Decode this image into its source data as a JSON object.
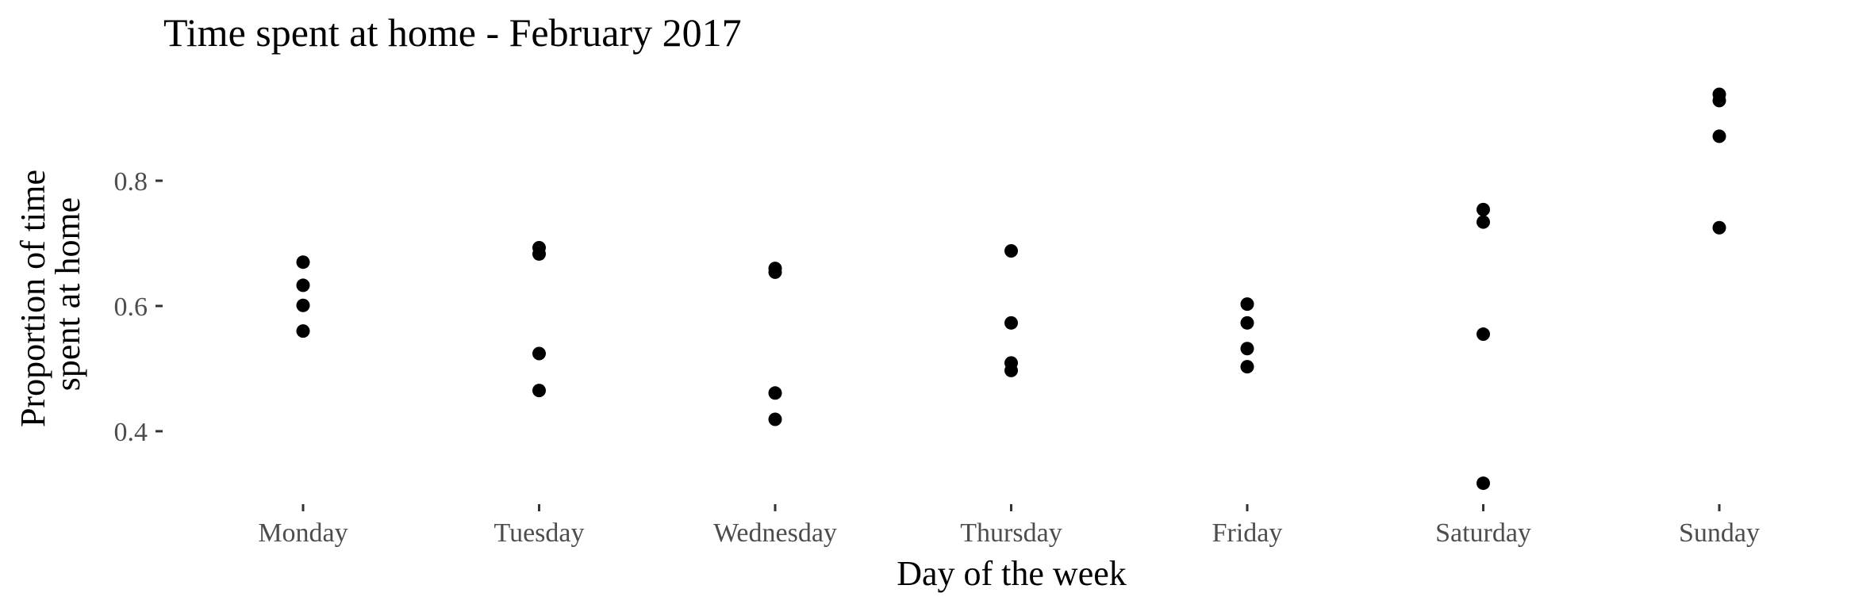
{
  "chart_data": {
    "type": "scatter",
    "title": "Time spent at home - February 2017",
    "xlabel": "Day of the week",
    "ylabel": [
      "Proportion of time",
      "spent at home"
    ],
    "categories": [
      "Monday",
      "Tuesday",
      "Wednesday",
      "Thursday",
      "Friday",
      "Saturday",
      "Sunday"
    ],
    "yticks": [
      0.4,
      0.6,
      0.8
    ],
    "ytick_labels": [
      "0.4",
      "0.6",
      "0.8"
    ],
    "ylim": [
      0.28,
      0.96
    ],
    "grid": false,
    "points": [
      {
        "x": "Monday",
        "y": 0.67
      },
      {
        "x": "Monday",
        "y": 0.633
      },
      {
        "x": "Monday",
        "y": 0.601
      },
      {
        "x": "Monday",
        "y": 0.56
      },
      {
        "x": "Tuesday",
        "y": 0.693
      },
      {
        "x": "Tuesday",
        "y": 0.683
      },
      {
        "x": "Tuesday",
        "y": 0.524
      },
      {
        "x": "Tuesday",
        "y": 0.465
      },
      {
        "x": "Wednesday",
        "y": 0.66
      },
      {
        "x": "Wednesday",
        "y": 0.654
      },
      {
        "x": "Wednesday",
        "y": 0.461
      },
      {
        "x": "Wednesday",
        "y": 0.419
      },
      {
        "x": "Thursday",
        "y": 0.688
      },
      {
        "x": "Thursday",
        "y": 0.573
      },
      {
        "x": "Thursday",
        "y": 0.509
      },
      {
        "x": "Thursday",
        "y": 0.497
      },
      {
        "x": "Friday",
        "y": 0.603
      },
      {
        "x": "Friday",
        "y": 0.573
      },
      {
        "x": "Friday",
        "y": 0.532
      },
      {
        "x": "Friday",
        "y": 0.503
      },
      {
        "x": "Saturday",
        "y": 0.754
      },
      {
        "x": "Saturday",
        "y": 0.734
      },
      {
        "x": "Saturday",
        "y": 0.555
      },
      {
        "x": "Saturday",
        "y": 0.317
      },
      {
        "x": "Sunday",
        "y": 0.938
      },
      {
        "x": "Sunday",
        "y": 0.928
      },
      {
        "x": "Sunday",
        "y": 0.871
      },
      {
        "x": "Sunday",
        "y": 0.725
      }
    ],
    "point_color": "#000000"
  }
}
